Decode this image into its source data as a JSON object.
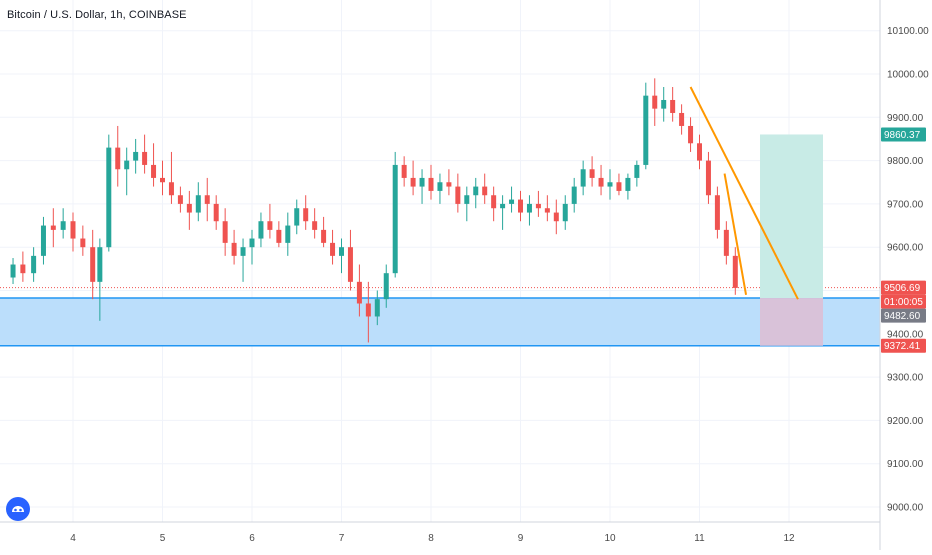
{
  "title": "Bitcoin / U.S. Dollar, 1h, COINBASE",
  "colors": {
    "up": "#26a69a",
    "down": "#ef5350",
    "zone_fill": "#bbdefb",
    "zone_line": "#2196f3",
    "trend": "#ff9800",
    "profit_fill": "#c8ebe6",
    "loss_fill": "#d9c2d9",
    "tag_green": "#26a69a",
    "tag_red": "#ef5350",
    "tag_gray": "#787b86"
  },
  "price_tags": {
    "target": "9860.37",
    "last": "9506.69",
    "countdown": "01:00:05",
    "zone_top": "9482.60",
    "zone_bottom": "9372.41"
  },
  "chart_data": {
    "type": "candlestick",
    "y_ticks": [
      "9000.00",
      "9100.00",
      "9200.00",
      "9300.00",
      "9400.00",
      "9500.00",
      "9600.00",
      "9700.00",
      "9800.00",
      "9900.00",
      "10000.00",
      "10100.00"
    ],
    "x_ticks": [
      "4",
      "5",
      "6",
      "7",
      "8",
      "9",
      "10",
      "11",
      "12"
    ],
    "ylim": [
      8920,
      10150
    ],
    "zone": [
      9372.41,
      9482.6
    ],
    "last_price": 9506.69,
    "target": 9860.37,
    "candles": [
      [
        3.33,
        9530,
        9575,
        9515,
        9560
      ],
      [
        3.44,
        9560,
        9590,
        9520,
        9540
      ],
      [
        3.56,
        9540,
        9600,
        9520,
        9580
      ],
      [
        3.67,
        9580,
        9670,
        9560,
        9650
      ],
      [
        3.78,
        9650,
        9690,
        9600,
        9640
      ],
      [
        3.89,
        9640,
        9690,
        9620,
        9660
      ],
      [
        4.0,
        9660,
        9680,
        9590,
        9620
      ],
      [
        4.11,
        9620,
        9650,
        9580,
        9600
      ],
      [
        4.22,
        9600,
        9640,
        9480,
        9520
      ],
      [
        4.3,
        9520,
        9620,
        9430,
        9600
      ],
      [
        4.4,
        9600,
        9860,
        9590,
        9830
      ],
      [
        4.5,
        9830,
        9880,
        9740,
        9780
      ],
      [
        4.6,
        9780,
        9830,
        9720,
        9800
      ],
      [
        4.7,
        9800,
        9850,
        9770,
        9820
      ],
      [
        4.8,
        9820,
        9860,
        9770,
        9790
      ],
      [
        4.9,
        9790,
        9840,
        9740,
        9760
      ],
      [
        5.0,
        9760,
        9800,
        9720,
        9750
      ],
      [
        5.1,
        9750,
        9820,
        9700,
        9720
      ],
      [
        5.2,
        9720,
        9740,
        9680,
        9700
      ],
      [
        5.3,
        9700,
        9730,
        9640,
        9680
      ],
      [
        5.4,
        9680,
        9750,
        9660,
        9720
      ],
      [
        5.5,
        9720,
        9760,
        9660,
        9700
      ],
      [
        5.6,
        9700,
        9720,
        9640,
        9660
      ],
      [
        5.7,
        9660,
        9690,
        9580,
        9610
      ],
      [
        5.8,
        9610,
        9640,
        9560,
        9580
      ],
      [
        5.9,
        9580,
        9620,
        9520,
        9600
      ],
      [
        6.0,
        9600,
        9640,
        9560,
        9620
      ],
      [
        6.1,
        9620,
        9680,
        9600,
        9660
      ],
      [
        6.2,
        9660,
        9700,
        9620,
        9640
      ],
      [
        6.3,
        9640,
        9660,
        9600,
        9610
      ],
      [
        6.4,
        9610,
        9680,
        9580,
        9650
      ],
      [
        6.5,
        9650,
        9710,
        9630,
        9690
      ],
      [
        6.6,
        9690,
        9720,
        9640,
        9660
      ],
      [
        6.7,
        9660,
        9690,
        9620,
        9640
      ],
      [
        6.8,
        9640,
        9670,
        9600,
        9610
      ],
      [
        6.9,
        9610,
        9640,
        9560,
        9580
      ],
      [
        7.0,
        9580,
        9620,
        9540,
        9600
      ],
      [
        7.1,
        9600,
        9640,
        9500,
        9520
      ],
      [
        7.2,
        9520,
        9560,
        9440,
        9470
      ],
      [
        7.3,
        9470,
        9520,
        9380,
        9440
      ],
      [
        7.4,
        9440,
        9500,
        9420,
        9480
      ],
      [
        7.5,
        9480,
        9560,
        9460,
        9540
      ],
      [
        7.6,
        9540,
        9820,
        9530,
        9790
      ],
      [
        7.7,
        9790,
        9810,
        9740,
        9760
      ],
      [
        7.8,
        9760,
        9800,
        9720,
        9740
      ],
      [
        7.9,
        9740,
        9780,
        9700,
        9760
      ],
      [
        8.0,
        9760,
        9790,
        9710,
        9730
      ],
      [
        8.1,
        9730,
        9770,
        9700,
        9750
      ],
      [
        8.2,
        9750,
        9780,
        9720,
        9740
      ],
      [
        8.3,
        9740,
        9770,
        9680,
        9700
      ],
      [
        8.4,
        9700,
        9740,
        9660,
        9720
      ],
      [
        8.5,
        9720,
        9760,
        9690,
        9740
      ],
      [
        8.6,
        9740,
        9770,
        9700,
        9720
      ],
      [
        8.7,
        9720,
        9740,
        9660,
        9690
      ],
      [
        8.8,
        9690,
        9720,
        9640,
        9700
      ],
      [
        8.9,
        9700,
        9740,
        9680,
        9710
      ],
      [
        9.0,
        9710,
        9730,
        9660,
        9680
      ],
      [
        9.1,
        9680,
        9720,
        9650,
        9700
      ],
      [
        9.2,
        9700,
        9730,
        9670,
        9690
      ],
      [
        9.3,
        9690,
        9720,
        9660,
        9680
      ],
      [
        9.4,
        9680,
        9710,
        9630,
        9660
      ],
      [
        9.5,
        9660,
        9720,
        9640,
        9700
      ],
      [
        9.6,
        9700,
        9760,
        9680,
        9740
      ],
      [
        9.7,
        9740,
        9800,
        9720,
        9780
      ],
      [
        9.8,
        9780,
        9810,
        9740,
        9760
      ],
      [
        9.9,
        9760,
        9790,
        9720,
        9740
      ],
      [
        10.0,
        9740,
        9780,
        9710,
        9750
      ],
      [
        10.1,
        9750,
        9770,
        9720,
        9730
      ],
      [
        10.2,
        9730,
        9770,
        9710,
        9760
      ],
      [
        10.3,
        9760,
        9800,
        9740,
        9790
      ],
      [
        10.4,
        9790,
        9980,
        9780,
        9950
      ],
      [
        10.5,
        9950,
        9990,
        9880,
        9920
      ],
      [
        10.6,
        9920,
        9970,
        9890,
        9940
      ],
      [
        10.7,
        9940,
        9970,
        9890,
        9910
      ],
      [
        10.8,
        9910,
        9930,
        9860,
        9880
      ],
      [
        10.9,
        9880,
        9900,
        9820,
        9840
      ],
      [
        11.0,
        9840,
        9860,
        9780,
        9800
      ],
      [
        11.1,
        9800,
        9820,
        9700,
        9720
      ],
      [
        11.2,
        9720,
        9740,
        9620,
        9640
      ],
      [
        11.3,
        9640,
        9660,
        9560,
        9580
      ],
      [
        11.4,
        9580,
        9600,
        9490,
        9506
      ]
    ]
  }
}
